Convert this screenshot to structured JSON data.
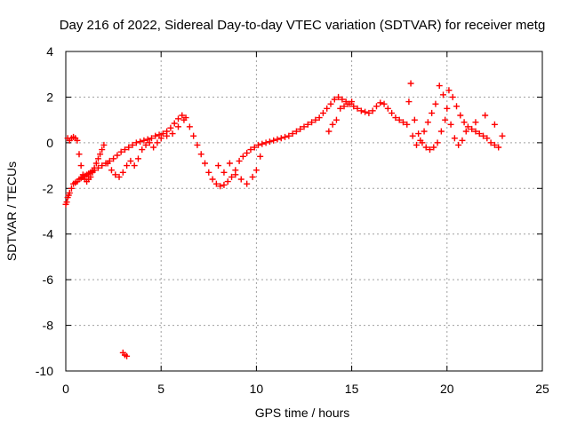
{
  "chart_data": {
    "type": "scatter",
    "title": "Day 216 of 2022, Sidereal Day-to-day VTEC variation (SDTVAR) for receiver metg",
    "xlabel": "GPS time / hours",
    "ylabel": "SDTVAR / TECUs",
    "xlim": [
      0,
      25
    ],
    "ylim": [
      -10,
      4
    ],
    "xticks": [
      0,
      5,
      10,
      15,
      20,
      25
    ],
    "yticks": [
      -10,
      -8,
      -6,
      -4,
      -2,
      0,
      2,
      4
    ],
    "xtick_labels": [
      "0",
      "5",
      "10",
      "15",
      "20",
      "25"
    ],
    "ytick_labels": [
      "-10",
      "-8",
      "-6",
      "-4",
      "-2",
      "0",
      "2",
      "4"
    ],
    "grid": true,
    "marker": "+",
    "series_color": "#ff0000",
    "series": [
      {
        "name": "SDTVAR",
        "x": [
          0.0,
          0.05,
          0.1,
          0.15,
          0.2,
          0.3,
          0.4,
          0.5,
          0.6,
          0.7,
          0.8,
          0.9,
          1.0,
          1.1,
          1.2,
          1.3,
          1.4,
          1.5,
          1.7,
          1.9,
          2.1,
          2.3,
          2.5,
          2.7,
          2.9,
          3.1,
          3.3,
          3.5,
          3.7,
          3.9,
          4.1,
          4.3,
          4.5,
          4.7,
          4.9,
          5.1,
          5.3,
          5.5,
          5.7,
          5.9,
          6.1,
          6.3,
          6.5,
          6.7,
          6.9,
          7.1,
          7.3,
          7.5,
          7.7,
          7.9,
          8.1,
          8.3,
          8.5,
          8.7,
          8.9,
          9.1,
          9.3,
          9.5,
          9.7,
          9.9,
          10.1,
          10.3,
          10.5,
          10.7,
          10.9,
          11.1,
          11.3,
          11.5,
          11.7,
          11.9,
          12.1,
          12.3,
          12.5,
          12.7,
          12.9,
          13.1,
          13.3,
          13.5,
          13.7,
          13.9,
          14.1,
          14.3,
          14.5,
          14.7,
          14.9,
          15.1,
          15.3,
          15.5,
          15.7,
          15.9,
          16.1,
          16.3,
          16.5,
          16.7,
          16.9,
          17.1,
          17.3,
          17.5,
          17.7,
          17.9,
          18.1,
          18.3,
          18.5,
          18.7,
          18.9,
          19.1,
          19.3,
          19.5,
          19.7,
          19.9,
          20.1,
          20.3,
          20.5,
          20.7,
          20.9,
          21.1,
          21.3,
          21.5,
          21.7,
          21.9,
          22.1,
          22.3,
          22.5,
          22.7,
          22.9,
          0.1,
          0.2,
          0.3,
          0.4,
          0.5,
          0.6,
          0.7,
          0.8,
          0.9,
          1.0,
          1.1,
          1.2,
          1.3,
          1.4,
          1.5,
          1.6,
          1.7,
          1.8,
          1.9,
          2.0,
          2.2,
          2.4,
          2.6,
          2.8,
          3.0,
          3.2,
          3.4,
          3.6,
          3.8,
          4.0,
          4.2,
          4.4,
          4.6,
          4.8,
          5.0,
          5.3,
          5.6,
          5.9,
          6.2,
          8.0,
          8.3,
          8.6,
          8.9,
          9.2,
          9.5,
          9.8,
          10.0,
          10.2,
          13.8,
          14.0,
          14.2,
          14.4,
          14.6,
          14.8,
          15.0,
          18.0,
          18.2,
          18.4,
          18.6,
          18.8,
          19.0,
          19.2,
          19.4,
          19.6,
          19.8,
          20.0,
          20.2,
          20.4,
          20.6,
          20.8,
          21.0,
          21.5,
          22.0,
          22.5,
          3.0,
          3.1,
          3.2
        ],
        "y": [
          -2.7,
          -2.6,
          -2.4,
          -2.3,
          -2.2,
          -2.0,
          -1.8,
          -1.75,
          -1.7,
          -1.6,
          -1.55,
          -1.5,
          -1.45,
          -1.4,
          -1.35,
          -1.3,
          -1.25,
          -1.2,
          -1.1,
          -1.0,
          -0.9,
          -0.8,
          -0.7,
          -0.55,
          -0.4,
          -0.3,
          -0.2,
          -0.1,
          0.0,
          0.05,
          0.1,
          0.15,
          0.2,
          0.3,
          0.35,
          0.4,
          0.5,
          0.65,
          0.85,
          1.05,
          1.2,
          1.1,
          0.7,
          0.3,
          -0.1,
          -0.5,
          -0.9,
          -1.3,
          -1.6,
          -1.8,
          -1.9,
          -1.85,
          -1.7,
          -1.5,
          -1.2,
          -0.8,
          -0.6,
          -0.45,
          -0.3,
          -0.2,
          -0.1,
          -0.05,
          0.0,
          0.05,
          0.1,
          0.15,
          0.2,
          0.25,
          0.3,
          0.4,
          0.5,
          0.6,
          0.7,
          0.8,
          0.9,
          1.0,
          1.1,
          1.3,
          1.5,
          1.7,
          1.9,
          2.0,
          1.9,
          1.8,
          1.7,
          1.6,
          1.5,
          1.4,
          1.35,
          1.3,
          1.4,
          1.6,
          1.75,
          1.7,
          1.5,
          1.3,
          1.1,
          1.0,
          0.9,
          0.8,
          2.6,
          1.0,
          0.4,
          0.0,
          -0.2,
          -0.3,
          -0.2,
          0.0,
          0.5,
          1.0,
          2.3,
          2.0,
          1.6,
          1.2,
          0.9,
          0.7,
          0.6,
          0.5,
          0.4,
          0.3,
          0.2,
          0.0,
          -0.1,
          -0.2,
          0.3,
          0.2,
          0.1,
          0.2,
          0.25,
          0.2,
          0.1,
          -0.5,
          -1.0,
          -1.4,
          -1.6,
          -1.7,
          -1.6,
          -1.5,
          -1.3,
          -1.1,
          -0.9,
          -0.7,
          -0.5,
          -0.3,
          -0.1,
          -0.9,
          -1.2,
          -1.4,
          -1.5,
          -1.3,
          -1.0,
          -0.8,
          -1.0,
          -0.7,
          -0.3,
          -0.1,
          0.0,
          -0.2,
          0.0,
          0.2,
          0.3,
          0.4,
          0.7,
          1.0,
          -1.0,
          -1.3,
          -0.9,
          -1.4,
          -1.6,
          -1.8,
          -1.5,
          -1.2,
          -0.6,
          0.5,
          0.8,
          1.0,
          1.5,
          1.6,
          1.7,
          1.8,
          1.8,
          0.3,
          -0.1,
          0.1,
          0.5,
          0.9,
          1.3,
          1.7,
          2.5,
          2.1,
          1.5,
          0.8,
          0.2,
          -0.1,
          0.1,
          0.5,
          0.9,
          1.2,
          0.8,
          -9.2,
          -9.3,
          -9.35
        ]
      }
    ]
  }
}
